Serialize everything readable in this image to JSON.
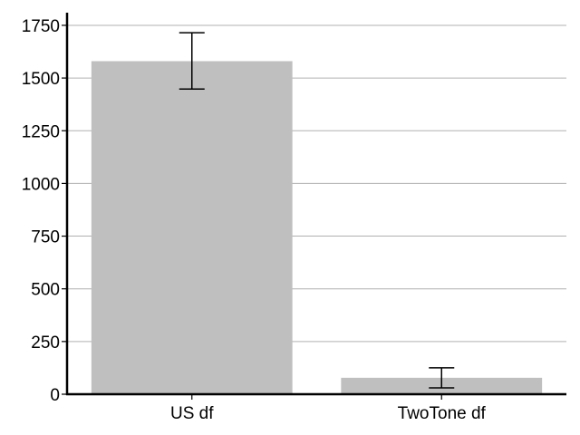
{
  "chart_data": {
    "type": "bar",
    "title": "",
    "xlabel": "",
    "ylabel": "",
    "categories": [
      "US df",
      "TwoTone df"
    ],
    "values": [
      1580,
      78
    ],
    "error_low": [
      1448,
      30
    ],
    "error_high": [
      1715,
      125
    ],
    "ylim": [
      0,
      1810
    ],
    "yticks": [
      0,
      250,
      500,
      750,
      1000,
      1250,
      1500,
      1750
    ],
    "grid": "horizontal",
    "legend": "none",
    "colors": {
      "bar": "#bfbfbf",
      "grid": "#b0b0b0",
      "axis": "#000000",
      "error_bar": "#000000"
    }
  }
}
